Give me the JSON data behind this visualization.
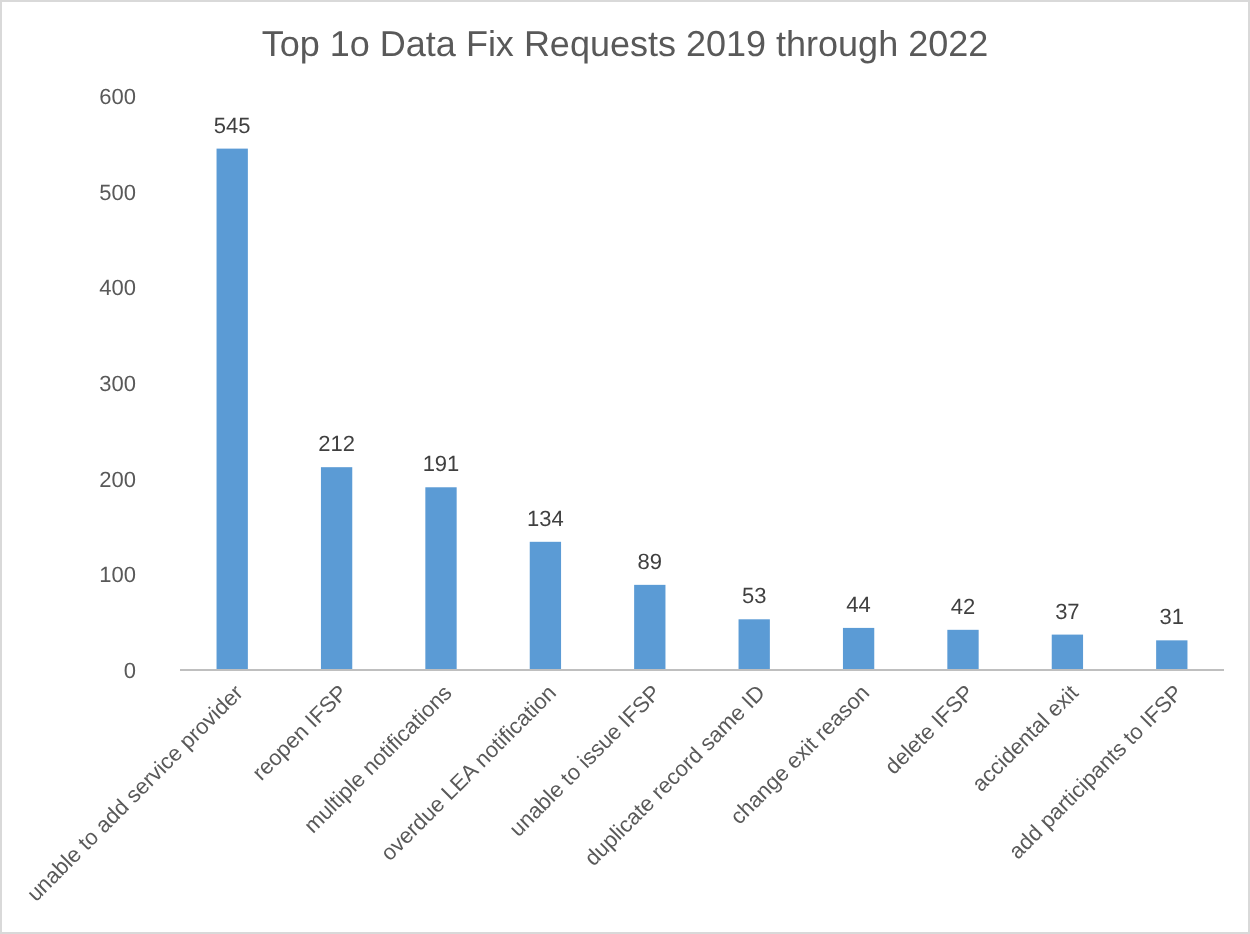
{
  "chart_data": {
    "type": "bar",
    "title": "Top 1o Data Fix Requests 2019 through 2022",
    "categories": [
      "unable to add service provider",
      "reopen IFSP",
      "multiple notifications",
      "overdue LEA notification",
      "unable to issue IFSP",
      "duplicate record same ID",
      "change exit reason",
      "delete IFSP",
      "accidental exit",
      "add participants to IFSP"
    ],
    "values": [
      545,
      212,
      191,
      134,
      89,
      53,
      44,
      42,
      37,
      31
    ],
    "color": "#5b9bd5",
    "ylim": [
      0,
      600
    ],
    "yticks": [
      0,
      100,
      200,
      300,
      400,
      500,
      600
    ],
    "data_labels": true,
    "grid": false
  }
}
